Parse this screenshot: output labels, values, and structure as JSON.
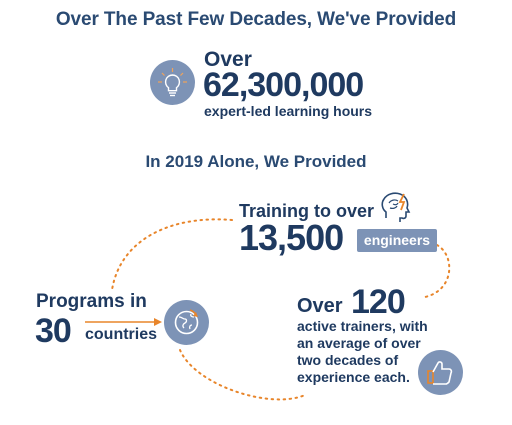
{
  "header": {
    "title": "Over The Past Few Decades, We've Provided"
  },
  "stat_hours": {
    "prefix": "Over",
    "value": "62,300,000",
    "label": "expert-led learning hours",
    "icon": "lightbulb-icon"
  },
  "section2": {
    "title": "In 2019 Alone, We Provided"
  },
  "stat_engineers": {
    "prefix": "Training to over",
    "value": "13,500",
    "badge": "engineers",
    "icon": "brain-icon"
  },
  "stat_countries": {
    "prefix": "Programs in",
    "value": "30",
    "label": "countries",
    "icon": "globe-icon"
  },
  "stat_trainers": {
    "prefix": "Over",
    "value": "120",
    "lines": [
      "active trainers, with",
      "an average of over",
      "two decades of",
      "experience each."
    ],
    "icon": "thumbs-up-icon"
  },
  "colors": {
    "navy": "#1f3a60",
    "icon_bg": "#7d93b6",
    "accent": "#e8852a"
  }
}
